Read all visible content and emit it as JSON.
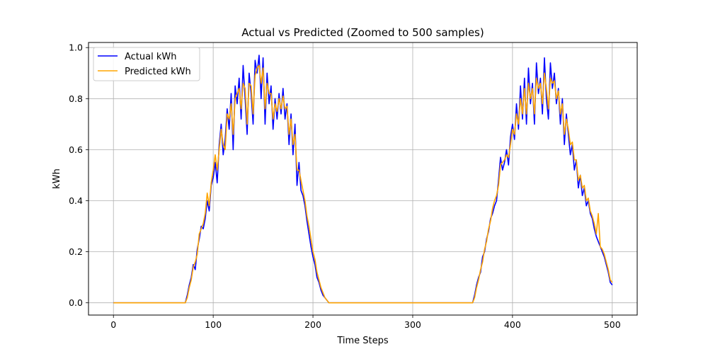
{
  "chart_data": {
    "type": "line",
    "title": "Actual vs Predicted (Zoomed to 500 samples)",
    "xlabel": "Time Steps",
    "ylabel": "kWh",
    "xlim": [
      -25,
      525
    ],
    "ylim": [
      -0.048,
      1.02
    ],
    "xticks": [
      0,
      100,
      200,
      300,
      400,
      500
    ],
    "yticks": [
      0.0,
      0.2,
      0.4,
      0.6,
      0.8,
      1.0
    ],
    "xtick_labels": [
      "0",
      "100",
      "200",
      "300",
      "400",
      "500"
    ],
    "ytick_labels": [
      "0.0",
      "0.2",
      "0.4",
      "0.6",
      "0.8",
      "1.0"
    ],
    "grid": true,
    "legend_position": "upper-left",
    "series": [
      {
        "name": "Actual kWh",
        "color": "#0000ff",
        "points": [
          [
            0,
            0
          ],
          [
            20,
            0
          ],
          [
            40,
            0
          ],
          [
            60,
            0
          ],
          [
            70,
            0
          ],
          [
            72,
            0
          ],
          [
            74,
            0.03
          ],
          [
            76,
            0.07
          ],
          [
            78,
            0.1
          ],
          [
            80,
            0.15
          ],
          [
            82,
            0.13
          ],
          [
            84,
            0.21
          ],
          [
            86,
            0.25
          ],
          [
            88,
            0.3
          ],
          [
            90,
            0.29
          ],
          [
            92,
            0.33
          ],
          [
            94,
            0.4
          ],
          [
            96,
            0.36
          ],
          [
            98,
            0.46
          ],
          [
            100,
            0.49
          ],
          [
            102,
            0.55
          ],
          [
            104,
            0.47
          ],
          [
            106,
            0.62
          ],
          [
            108,
            0.7
          ],
          [
            110,
            0.58
          ],
          [
            112,
            0.64
          ],
          [
            114,
            0.76
          ],
          [
            116,
            0.68
          ],
          [
            118,
            0.82
          ],
          [
            120,
            0.6
          ],
          [
            122,
            0.85
          ],
          [
            124,
            0.78
          ],
          [
            126,
            0.88
          ],
          [
            128,
            0.72
          ],
          [
            130,
            0.93
          ],
          [
            132,
            0.8
          ],
          [
            134,
            0.66
          ],
          [
            136,
            0.9
          ],
          [
            138,
            0.82
          ],
          [
            140,
            0.7
          ],
          [
            142,
            0.95
          ],
          [
            144,
            0.9
          ],
          [
            146,
            0.97
          ],
          [
            148,
            0.8
          ],
          [
            150,
            0.96
          ],
          [
            152,
            0.7
          ],
          [
            154,
            0.9
          ],
          [
            156,
            0.78
          ],
          [
            158,
            0.85
          ],
          [
            160,
            0.68
          ],
          [
            162,
            0.8
          ],
          [
            164,
            0.72
          ],
          [
            166,
            0.82
          ],
          [
            168,
            0.74
          ],
          [
            170,
            0.84
          ],
          [
            172,
            0.72
          ],
          [
            174,
            0.78
          ],
          [
            176,
            0.62
          ],
          [
            178,
            0.74
          ],
          [
            180,
            0.58
          ],
          [
            182,
            0.7
          ],
          [
            184,
            0.46
          ],
          [
            186,
            0.55
          ],
          [
            188,
            0.44
          ],
          [
            190,
            0.42
          ],
          [
            192,
            0.38
          ],
          [
            194,
            0.32
          ],
          [
            196,
            0.27
          ],
          [
            198,
            0.22
          ],
          [
            200,
            0.18
          ],
          [
            202,
            0.15
          ],
          [
            204,
            0.1
          ],
          [
            206,
            0.08
          ],
          [
            208,
            0.05
          ],
          [
            210,
            0.03
          ],
          [
            212,
            0.02
          ],
          [
            214,
            0.01
          ],
          [
            216,
            0
          ],
          [
            240,
            0
          ],
          [
            280,
            0
          ],
          [
            320,
            0
          ],
          [
            350,
            0
          ],
          [
            360,
            0
          ],
          [
            362,
            0.03
          ],
          [
            364,
            0.07
          ],
          [
            366,
            0.1
          ],
          [
            368,
            0.12
          ],
          [
            370,
            0.18
          ],
          [
            372,
            0.2
          ],
          [
            374,
            0.25
          ],
          [
            376,
            0.28
          ],
          [
            378,
            0.33
          ],
          [
            380,
            0.35
          ],
          [
            382,
            0.38
          ],
          [
            384,
            0.4
          ],
          [
            386,
            0.48
          ],
          [
            388,
            0.57
          ],
          [
            390,
            0.52
          ],
          [
            392,
            0.55
          ],
          [
            394,
            0.6
          ],
          [
            396,
            0.54
          ],
          [
            398,
            0.65
          ],
          [
            400,
            0.7
          ],
          [
            402,
            0.64
          ],
          [
            404,
            0.78
          ],
          [
            406,
            0.68
          ],
          [
            408,
            0.85
          ],
          [
            410,
            0.72
          ],
          [
            412,
            0.88
          ],
          [
            414,
            0.7
          ],
          [
            416,
            0.92
          ],
          [
            418,
            0.78
          ],
          [
            420,
            0.86
          ],
          [
            422,
            0.7
          ],
          [
            424,
            0.94
          ],
          [
            426,
            0.82
          ],
          [
            428,
            0.88
          ],
          [
            430,
            0.74
          ],
          [
            432,
            0.96
          ],
          [
            434,
            0.8
          ],
          [
            436,
            0.72
          ],
          [
            438,
            0.94
          ],
          [
            440,
            0.84
          ],
          [
            442,
            0.9
          ],
          [
            444,
            0.78
          ],
          [
            446,
            0.84
          ],
          [
            448,
            0.7
          ],
          [
            450,
            0.8
          ],
          [
            452,
            0.62
          ],
          [
            454,
            0.74
          ],
          [
            456,
            0.66
          ],
          [
            458,
            0.58
          ],
          [
            460,
            0.62
          ],
          [
            462,
            0.52
          ],
          [
            464,
            0.56
          ],
          [
            466,
            0.45
          ],
          [
            468,
            0.5
          ],
          [
            470,
            0.42
          ],
          [
            472,
            0.45
          ],
          [
            474,
            0.38
          ],
          [
            476,
            0.4
          ],
          [
            478,
            0.35
          ],
          [
            480,
            0.33
          ],
          [
            482,
            0.29
          ],
          [
            484,
            0.26
          ],
          [
            486,
            0.24
          ],
          [
            488,
            0.22
          ],
          [
            490,
            0.2
          ],
          [
            492,
            0.18
          ],
          [
            494,
            0.15
          ],
          [
            496,
            0.12
          ],
          [
            498,
            0.08
          ],
          [
            500,
            0.07
          ]
        ]
      },
      {
        "name": "Predicted kWh",
        "color": "#ffa500",
        "points": [
          [
            0,
            0
          ],
          [
            20,
            0
          ],
          [
            40,
            0
          ],
          [
            60,
            0
          ],
          [
            70,
            0
          ],
          [
            72,
            0
          ],
          [
            74,
            0.02
          ],
          [
            76,
            0.06
          ],
          [
            78,
            0.09
          ],
          [
            80,
            0.14
          ],
          [
            82,
            0.16
          ],
          [
            84,
            0.19
          ],
          [
            86,
            0.27
          ],
          [
            88,
            0.29
          ],
          [
            90,
            0.31
          ],
          [
            92,
            0.35
          ],
          [
            94,
            0.43
          ],
          [
            96,
            0.38
          ],
          [
            98,
            0.47
          ],
          [
            100,
            0.52
          ],
          [
            102,
            0.58
          ],
          [
            104,
            0.52
          ],
          [
            106,
            0.6
          ],
          [
            108,
            0.68
          ],
          [
            110,
            0.62
          ],
          [
            112,
            0.6
          ],
          [
            114,
            0.74
          ],
          [
            116,
            0.72
          ],
          [
            118,
            0.78
          ],
          [
            120,
            0.66
          ],
          [
            122,
            0.8
          ],
          [
            124,
            0.82
          ],
          [
            126,
            0.84
          ],
          [
            128,
            0.76
          ],
          [
            130,
            0.86
          ],
          [
            132,
            0.84
          ],
          [
            134,
            0.7
          ],
          [
            136,
            0.86
          ],
          [
            138,
            0.85
          ],
          [
            140,
            0.74
          ],
          [
            142,
            0.89
          ],
          [
            144,
            0.92
          ],
          [
            146,
            0.93
          ],
          [
            148,
            0.86
          ],
          [
            150,
            0.92
          ],
          [
            152,
            0.76
          ],
          [
            154,
            0.86
          ],
          [
            156,
            0.82
          ],
          [
            158,
            0.82
          ],
          [
            160,
            0.72
          ],
          [
            162,
            0.78
          ],
          [
            164,
            0.75
          ],
          [
            166,
            0.8
          ],
          [
            168,
            0.76
          ],
          [
            170,
            0.81
          ],
          [
            172,
            0.76
          ],
          [
            174,
            0.77
          ],
          [
            176,
            0.66
          ],
          [
            178,
            0.72
          ],
          [
            180,
            0.62
          ],
          [
            182,
            0.66
          ],
          [
            184,
            0.52
          ],
          [
            186,
            0.52
          ],
          [
            188,
            0.48
          ],
          [
            190,
            0.44
          ],
          [
            192,
            0.4
          ],
          [
            194,
            0.34
          ],
          [
            196,
            0.3
          ],
          [
            198,
            0.25
          ],
          [
            200,
            0.2
          ],
          [
            202,
            0.17
          ],
          [
            204,
            0.12
          ],
          [
            206,
            0.09
          ],
          [
            208,
            0.06
          ],
          [
            210,
            0.04
          ],
          [
            212,
            0.02
          ],
          [
            214,
            0.01
          ],
          [
            216,
            0
          ],
          [
            240,
            0
          ],
          [
            280,
            0
          ],
          [
            320,
            0
          ],
          [
            350,
            0
          ],
          [
            360,
            0
          ],
          [
            362,
            0.02
          ],
          [
            364,
            0.06
          ],
          [
            366,
            0.09
          ],
          [
            368,
            0.13
          ],
          [
            370,
            0.16
          ],
          [
            372,
            0.21
          ],
          [
            374,
            0.24
          ],
          [
            376,
            0.29
          ],
          [
            378,
            0.32
          ],
          [
            380,
            0.37
          ],
          [
            382,
            0.4
          ],
          [
            384,
            0.42
          ],
          [
            386,
            0.46
          ],
          [
            388,
            0.54
          ],
          [
            390,
            0.55
          ],
          [
            392,
            0.56
          ],
          [
            394,
            0.58
          ],
          [
            396,
            0.57
          ],
          [
            398,
            0.62
          ],
          [
            400,
            0.68
          ],
          [
            402,
            0.66
          ],
          [
            404,
            0.74
          ],
          [
            406,
            0.7
          ],
          [
            408,
            0.8
          ],
          [
            410,
            0.74
          ],
          [
            412,
            0.84
          ],
          [
            414,
            0.74
          ],
          [
            416,
            0.86
          ],
          [
            418,
            0.8
          ],
          [
            420,
            0.84
          ],
          [
            422,
            0.74
          ],
          [
            424,
            0.88
          ],
          [
            426,
            0.84
          ],
          [
            428,
            0.86
          ],
          [
            430,
            0.78
          ],
          [
            432,
            0.9
          ],
          [
            434,
            0.84
          ],
          [
            436,
            0.76
          ],
          [
            438,
            0.88
          ],
          [
            440,
            0.86
          ],
          [
            442,
            0.87
          ],
          [
            444,
            0.8
          ],
          [
            446,
            0.83
          ],
          [
            448,
            0.74
          ],
          [
            450,
            0.78
          ],
          [
            452,
            0.66
          ],
          [
            454,
            0.72
          ],
          [
            456,
            0.68
          ],
          [
            458,
            0.62
          ],
          [
            460,
            0.63
          ],
          [
            462,
            0.56
          ],
          [
            464,
            0.56
          ],
          [
            466,
            0.48
          ],
          [
            468,
            0.5
          ],
          [
            470,
            0.45
          ],
          [
            472,
            0.46
          ],
          [
            474,
            0.4
          ],
          [
            476,
            0.41
          ],
          [
            478,
            0.36
          ],
          [
            480,
            0.34
          ],
          [
            482,
            0.31
          ],
          [
            484,
            0.27
          ],
          [
            486,
            0.35
          ],
          [
            488,
            0.22
          ],
          [
            490,
            0.21
          ],
          [
            492,
            0.19
          ],
          [
            494,
            0.16
          ],
          [
            496,
            0.13
          ],
          [
            498,
            0.09
          ],
          [
            500,
            0.08
          ]
        ]
      }
    ]
  }
}
